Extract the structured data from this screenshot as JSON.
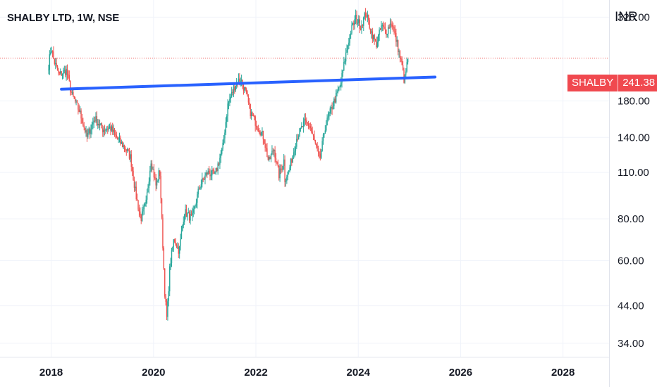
{
  "header": {
    "title": "SHALBY LTD, 1W, NSE",
    "currency": "INR"
  },
  "price_badge": {
    "symbol": "SHALBY",
    "price": "241.38"
  },
  "colors": {
    "up": "#26a69a",
    "down": "#ef5350",
    "trendline": "#2962ff",
    "last_price_line": "#ef5350",
    "grid": "#f0f3fa"
  },
  "chart_data": {
    "type": "candlestick",
    "y_scale": "log",
    "ylim": [
      31,
      360
    ],
    "xlim": [
      2017.0,
      2028.9
    ],
    "y_ticks": [
      "320.00",
      "180.00",
      "140.00",
      "110.00",
      "80.00",
      "60.00",
      "44.00",
      "34.00"
    ],
    "x_ticks": [
      "2018",
      "2020",
      "2022",
      "2024",
      "2026",
      "2028"
    ],
    "last_price": 241.38,
    "trendline": {
      "start": [
        2018.2,
        195
      ],
      "end": [
        2025.5,
        212
      ]
    },
    "price_path": [
      [
        2017.95,
        230
      ],
      [
        2018.0,
        262
      ],
      [
        2018.05,
        238
      ],
      [
        2018.15,
        215
      ],
      [
        2018.3,
        222
      ],
      [
        2018.4,
        188
      ],
      [
        2018.55,
        168
      ],
      [
        2018.7,
        140
      ],
      [
        2018.85,
        160
      ],
      [
        2019.0,
        148
      ],
      [
        2019.15,
        150
      ],
      [
        2019.3,
        138
      ],
      [
        2019.45,
        130
      ],
      [
        2019.55,
        122
      ],
      [
        2019.65,
        95
      ],
      [
        2019.75,
        80
      ],
      [
        2019.85,
        88
      ],
      [
        2019.95,
        120
      ],
      [
        2020.05,
        100
      ],
      [
        2020.12,
        112
      ],
      [
        2020.22,
        48
      ],
      [
        2020.26,
        40
      ],
      [
        2020.32,
        58
      ],
      [
        2020.4,
        70
      ],
      [
        2020.5,
        64
      ],
      [
        2020.6,
        84
      ],
      [
        2020.75,
        80
      ],
      [
        2020.9,
        100
      ],
      [
        2021.05,
        110
      ],
      [
        2021.2,
        108
      ],
      [
        2021.35,
        130
      ],
      [
        2021.45,
        175
      ],
      [
        2021.6,
        202
      ],
      [
        2021.7,
        210
      ],
      [
        2021.8,
        190
      ],
      [
        2021.9,
        165
      ],
      [
        2022.05,
        150
      ],
      [
        2022.15,
        140
      ],
      [
        2022.25,
        118
      ],
      [
        2022.35,
        130
      ],
      [
        2022.45,
        108
      ],
      [
        2022.55,
        120
      ],
      [
        2022.5,
        100
      ],
      [
        2022.65,
        112
      ],
      [
        2022.8,
        140
      ],
      [
        2022.95,
        155
      ],
      [
        2023.05,
        152
      ],
      [
        2023.15,
        135
      ],
      [
        2023.25,
        120
      ],
      [
        2023.35,
        150
      ],
      [
        2023.5,
        175
      ],
      [
        2023.65,
        200
      ],
      [
        2023.75,
        245
      ],
      [
        2023.85,
        290
      ],
      [
        2023.95,
        318
      ],
      [
        2024.05,
        300
      ],
      [
        2024.15,
        330
      ],
      [
        2024.25,
        290
      ],
      [
        2024.35,
        265
      ],
      [
        2024.45,
        300
      ],
      [
        2024.55,
        290
      ],
      [
        2024.65,
        310
      ],
      [
        2024.75,
        270
      ],
      [
        2024.85,
        230
      ],
      [
        2024.9,
        205
      ],
      [
        2024.97,
        241.38
      ]
    ]
  }
}
